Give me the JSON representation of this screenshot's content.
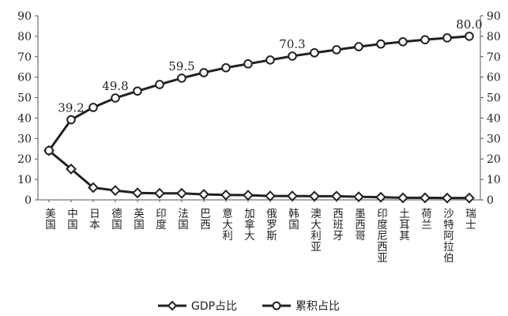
{
  "chart_data": {
    "type": "line",
    "categories": [
      "美国",
      "中国",
      "日本",
      "德国",
      "英国",
      "印度",
      "法国",
      "巴西",
      "意大利",
      "加拿大",
      "俄罗斯",
      "韩国",
      "澳大利亚",
      "西班牙",
      "墨西哥",
      "印度尼西亚",
      "土耳其",
      "荷兰",
      "沙特阿拉伯",
      "瑞士"
    ],
    "series": [
      {
        "name": "GDP占比",
        "marker": "diamond",
        "axis": "left",
        "values": [
          24.1,
          15.1,
          6.0,
          4.6,
          3.4,
          3.2,
          3.2,
          2.7,
          2.4,
          2.3,
          1.9,
          1.9,
          1.8,
          1.8,
          1.5,
          1.3,
          1.0,
          1.0,
          0.9,
          0.9
        ]
      },
      {
        "name": "累积占比",
        "marker": "circle",
        "axis": "left",
        "values": [
          24.1,
          39.2,
          45.2,
          49.8,
          53.2,
          56.4,
          59.5,
          62.2,
          64.6,
          66.5,
          68.4,
          70.3,
          71.9,
          73.4,
          74.9,
          76.2,
          77.3,
          78.3,
          79.2,
          80.0
        ]
      }
    ],
    "data_labels": [
      {
        "series": 1,
        "index": 1,
        "text": "39.2"
      },
      {
        "series": 1,
        "index": 3,
        "text": "49.8"
      },
      {
        "series": 1,
        "index": 6,
        "text": "59.5"
      },
      {
        "series": 1,
        "index": 11,
        "text": "70.3"
      },
      {
        "series": 1,
        "index": 19,
        "text": "80.0"
      }
    ],
    "y_ticks": [
      "0",
      "10",
      "20",
      "30",
      "40",
      "50",
      "60",
      "70",
      "80",
      "90"
    ],
    "ylim": [
      0,
      90
    ],
    "y2lim": [
      0,
      90
    ],
    "grid": false,
    "legend_position": "bottom",
    "colors": {
      "line": "#222222",
      "marker_fill": "#ffffff",
      "axis": "#555555"
    }
  }
}
